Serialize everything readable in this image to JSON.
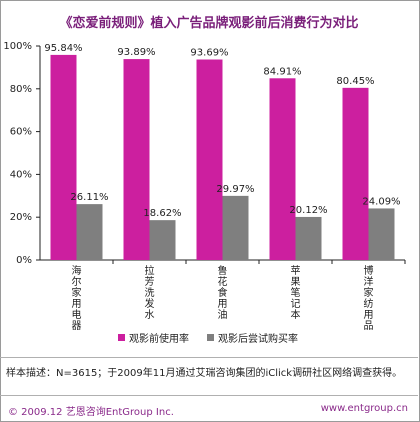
{
  "title": "《恋爱前规则》植入广告品牌观影前后消费行为对比",
  "chart_data": {
    "type": "bar",
    "categories": [
      "海尔家用电器",
      "拉芳洗发水",
      "鲁花食用油",
      "苹果笔记本",
      "博洋家纺用品"
    ],
    "series": [
      {
        "name": "观影前使用率",
        "values": [
          95.84,
          93.89,
          93.69,
          84.91,
          80.45
        ],
        "labels": [
          "95.84%",
          "93.89%",
          "93.69%",
          "84.91%",
          "80.45%"
        ],
        "color": "#cc1f9f"
      },
      {
        "name": "观影后尝试购买率",
        "values": [
          26.11,
          18.62,
          29.97,
          20.12,
          24.09
        ],
        "labels": [
          "26.11%",
          "18.62%",
          "29.97%",
          "20.12%",
          "24.09%"
        ],
        "color": "#7f7f7f"
      }
    ],
    "ylim": [
      0,
      100
    ],
    "yticks": [
      "0%",
      "20%",
      "40%",
      "60%",
      "80%",
      "100%"
    ],
    "grid": false,
    "legend": "bottom"
  },
  "note": "样本描述：N=3615；于2009年11月通过艾瑞咨询集团的iClick调研社区网络调查获得。",
  "footer": {
    "left": "© 2009.12  艺恩咨询EntGroup Inc.",
    "right": "www.entgroup.cn"
  }
}
